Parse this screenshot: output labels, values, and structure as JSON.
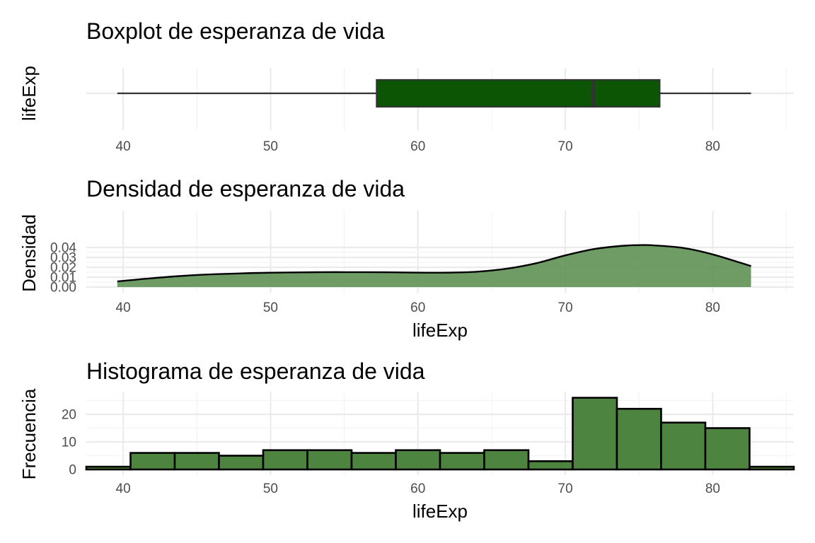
{
  "colors": {
    "box_fill": "#0b5504",
    "density_fill": "#5a8e4f",
    "hist_fill": "#4d8540",
    "outline": "#000000",
    "grid": "#ebebeb"
  },
  "chart_data": [
    {
      "id": "boxplot",
      "type": "boxplot",
      "title": "Boxplot de esperanza de vida",
      "xlabel": "",
      "ylabel": "lifeExp",
      "xlim": [
        37.5,
        85.5
      ],
      "x_ticks": [
        40,
        50,
        60,
        70,
        80
      ],
      "grid": true,
      "stats": {
        "min": 39.6,
        "q1": 57.2,
        "median": 71.9,
        "q3": 76.4,
        "max": 82.6
      }
    },
    {
      "id": "density",
      "type": "area",
      "title": "Densidad de esperanza de vida",
      "xlabel": "lifeExp",
      "ylabel": "Densidad",
      "xlim": [
        37.5,
        85.5
      ],
      "ylim": [
        0,
        0.043
      ],
      "x_ticks": [
        40,
        50,
        60,
        70,
        80
      ],
      "y_ticks": [
        0.0,
        0.01,
        0.02,
        0.03,
        0.04
      ],
      "y_tick_labels": [
        "0.00",
        "0.01",
        "0.02",
        "0.03",
        "0.04"
      ],
      "grid": true,
      "x": [
        39.6,
        42,
        45,
        48,
        50,
        53,
        55,
        58,
        60,
        62,
        64,
        66,
        68,
        70,
        72,
        74,
        75.2,
        76,
        78,
        80,
        82.6
      ],
      "y": [
        0.0057,
        0.009,
        0.0122,
        0.0138,
        0.0145,
        0.015,
        0.0151,
        0.0149,
        0.0146,
        0.0146,
        0.0155,
        0.0185,
        0.024,
        0.032,
        0.0385,
        0.0418,
        0.0424,
        0.0421,
        0.0395,
        0.033,
        0.0212
      ]
    },
    {
      "id": "histogram",
      "type": "bar",
      "title": "Histograma de esperanza de vida",
      "xlabel": "lifeExp",
      "ylabel": "Frecuencia",
      "xlim": [
        37.5,
        85.5
      ],
      "ylim": [
        0,
        27
      ],
      "x_ticks": [
        40,
        50,
        60,
        70,
        80
      ],
      "y_ticks": [
        0,
        10,
        20
      ],
      "grid": true,
      "bin_width": 3,
      "bin_centers": [
        39,
        42,
        45,
        48,
        51,
        54,
        57,
        60,
        63,
        66,
        69,
        72,
        75,
        78,
        81,
        84
      ],
      "counts": [
        1,
        6,
        6,
        5,
        7,
        7,
        6,
        7,
        6,
        7,
        3,
        26,
        22,
        17,
        15,
        1
      ]
    }
  ]
}
